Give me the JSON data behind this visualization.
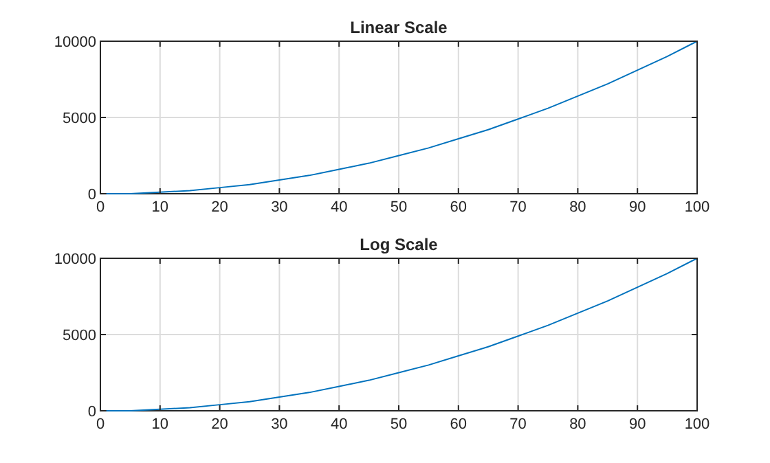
{
  "chart_data": [
    {
      "type": "line",
      "title": "Linear Scale",
      "x": [
        1,
        5,
        10,
        15,
        20,
        25,
        30,
        35,
        40,
        45,
        50,
        55,
        60,
        65,
        70,
        75,
        80,
        85,
        90,
        95,
        100
      ],
      "series": [
        {
          "color": "#0072bd",
          "values": [
            0,
            0,
            100,
            200,
            400,
            600,
            900,
            1200,
            1600,
            2000,
            2500,
            3000,
            3600,
            4200,
            4900,
            5600,
            6400,
            7200,
            8100,
            9000,
            10000
          ]
        }
      ],
      "xlim": [
        0,
        100
      ],
      "xticks": [
        0,
        10,
        20,
        30,
        40,
        50,
        60,
        70,
        80,
        90,
        100
      ],
      "ylim": [
        0,
        10000
      ],
      "yticks": [
        0,
        5000,
        10000
      ],
      "grid": true,
      "line_style": "solid"
    },
    {
      "type": "line",
      "title": "Log Scale",
      "x": [
        1,
        5,
        10,
        15,
        20,
        25,
        30,
        35,
        40,
        45,
        50,
        55,
        60,
        65,
        70,
        75,
        80,
        85,
        90,
        95,
        100
      ],
      "series": [
        {
          "color": "#0072bd",
          "values": [
            0,
            0,
            100,
            200,
            400,
            600,
            900,
            1200,
            1600,
            2000,
            2500,
            3000,
            3600,
            4200,
            4900,
            5600,
            6400,
            7200,
            8100,
            9000,
            10000
          ]
        }
      ],
      "xlim": [
        0,
        100
      ],
      "xticks": [
        0,
        10,
        20,
        30,
        40,
        50,
        60,
        70,
        80,
        90,
        100
      ],
      "ylim": [
        0,
        10000
      ],
      "yticks": [
        0,
        5000,
        10000
      ],
      "grid": true,
      "line_style": "solid"
    }
  ]
}
